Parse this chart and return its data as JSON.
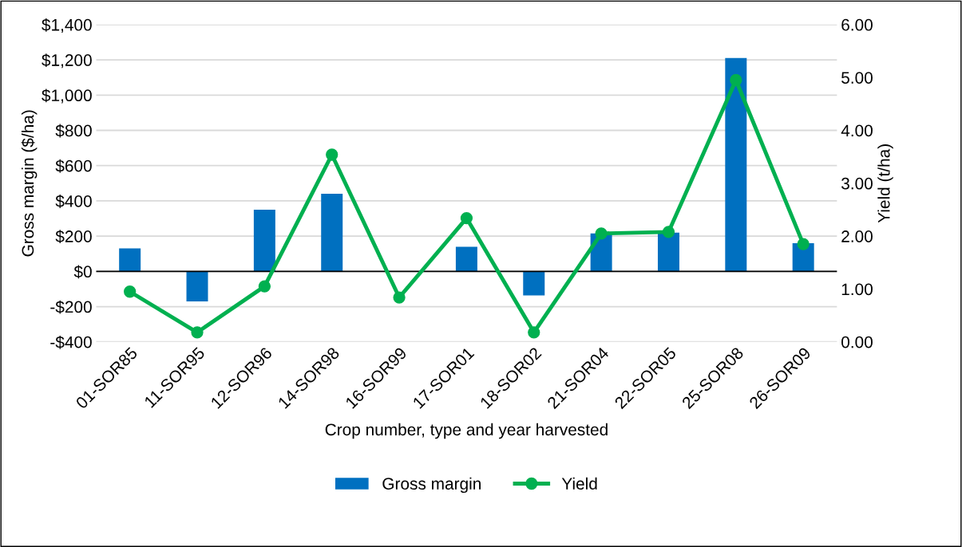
{
  "chart_data": {
    "type": "bar",
    "categories": [
      "01-SOR85",
      "11-SOR95",
      "12-SOR96",
      "14-SOR98",
      "16-SOR99",
      "17-SOR01",
      "18-SOR02",
      "21-SOR04",
      "22-SOR05",
      "25-SOR08",
      "26-SOR09"
    ],
    "series": [
      {
        "name": "Gross margin",
        "color": "#0070c0",
        "values": [
          130,
          -170,
          350,
          440,
          0,
          140,
          -137,
          215,
          220,
          1210,
          160
        ]
      },
      {
        "name": "Yield",
        "type": "line",
        "axis": "y2",
        "color": "#00b050",
        "marker": "circle",
        "values": [
          0.95,
          0.18,
          1.05,
          3.54,
          0.84,
          2.34,
          0.18,
          2.05,
          2.08,
          4.95,
          1.85
        ]
      }
    ],
    "xlabel": "Crop number, type and year harvested",
    "ylabel": "Gross margin ($/ha)",
    "y2label": "Yield (t/ha)",
    "ylim": [
      -400,
      1400
    ],
    "yticks": [
      {
        "value": -400,
        "label": "-$400"
      },
      {
        "value": -200,
        "label": "-$200"
      },
      {
        "value": 0,
        "label": "$0"
      },
      {
        "value": 200,
        "label": "$200"
      },
      {
        "value": 400,
        "label": "$400"
      },
      {
        "value": 600,
        "label": "$600"
      },
      {
        "value": 800,
        "label": "$800"
      },
      {
        "value": 1000,
        "label": "$1,000"
      },
      {
        "value": 1200,
        "label": "$1,200"
      },
      {
        "value": 1400,
        "label": "$1,400"
      }
    ],
    "y2lim": [
      0,
      6
    ],
    "y2ticks": [
      {
        "value": 0,
        "label": "0.00"
      },
      {
        "value": 1,
        "label": "1.00"
      },
      {
        "value": 2,
        "label": "2.00"
      },
      {
        "value": 3,
        "label": "3.00"
      },
      {
        "value": 4,
        "label": "4.00"
      },
      {
        "value": 5,
        "label": "5.00"
      },
      {
        "value": 6,
        "label": "6.00"
      }
    ],
    "grid": "y",
    "legend": "bottom"
  }
}
